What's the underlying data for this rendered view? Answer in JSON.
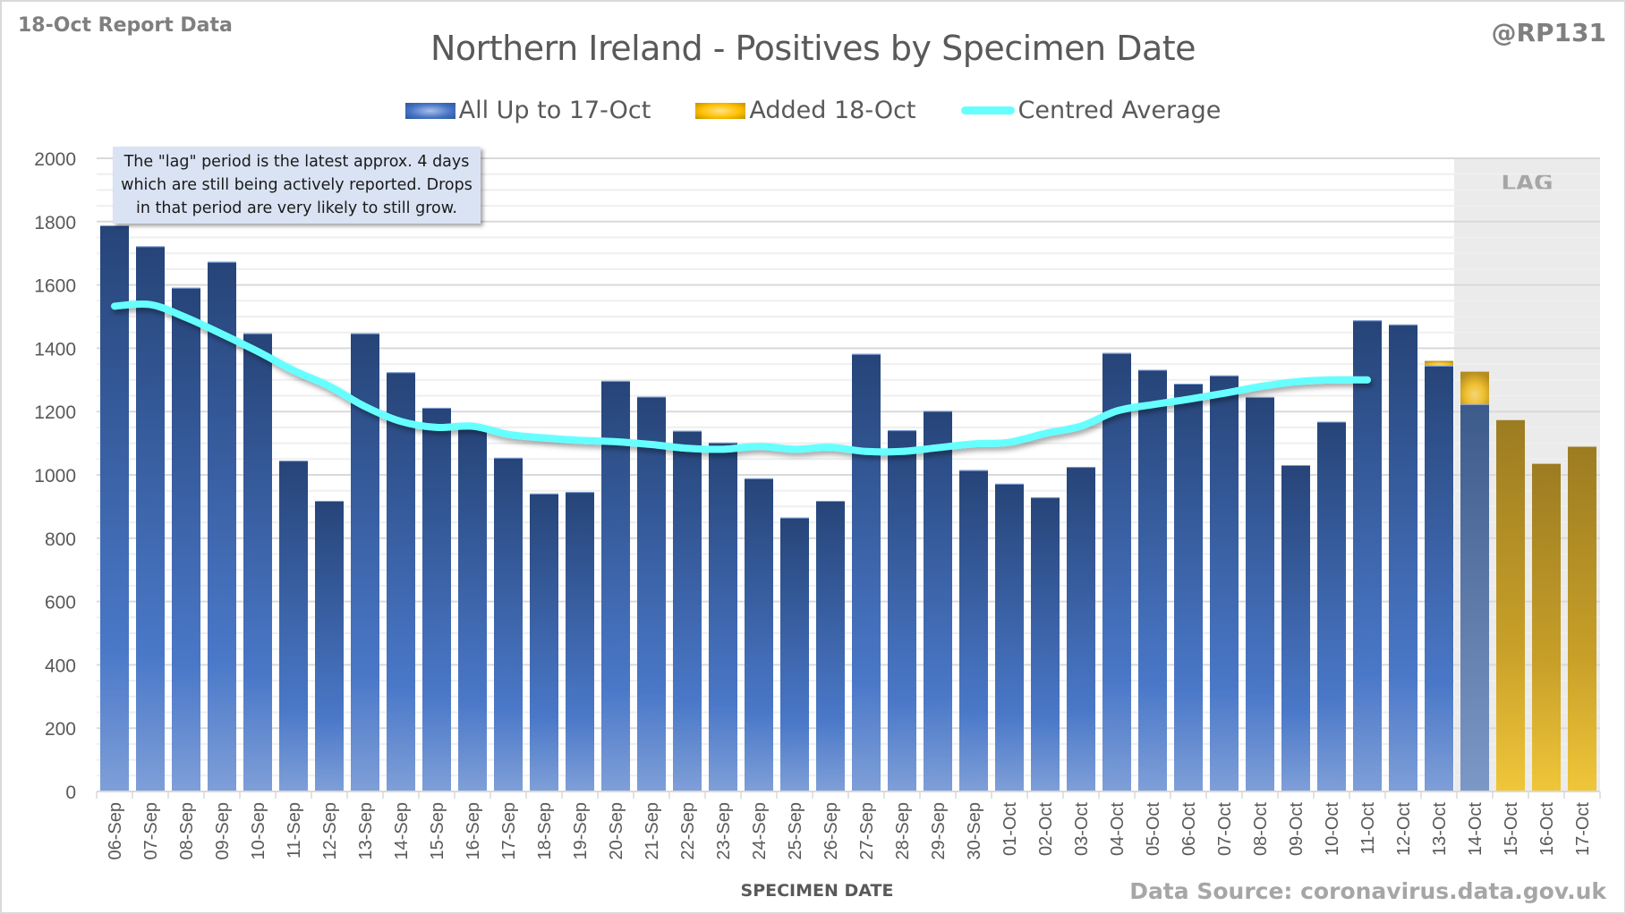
{
  "header": {
    "report_label": "18-Oct Report Data",
    "handle": "@RP131",
    "source": "Data Source: coronavirus.data.gov.uk"
  },
  "annotation": {
    "text": "The \"lag\" period is the latest approx. 4 days\nwhich are still being actively reported. Drops\nin that period are very likely to still grow."
  },
  "colors": {
    "blue_bar_top": "#264478",
    "blue_bar_bottom": "#7f9fd8",
    "gold_bar_top": "#9c7c22",
    "gold_bar_bottom": "#f0c63a",
    "average_line": "#66ffff",
    "lag_shading": "#ebebeb",
    "grid": "#d9d9d9",
    "text": "#595959"
  },
  "chart_data": {
    "type": "bar",
    "title": "Northern Ireland - Positives by Specimen Date",
    "xlabel": "SPECIMEN DATE",
    "ylabel": "",
    "ylim": [
      0,
      2000
    ],
    "yticks": [
      0,
      200,
      400,
      600,
      800,
      1000,
      1200,
      1400,
      1600,
      1800,
      2000
    ],
    "grid": true,
    "stacked": true,
    "legend_position": "top-center",
    "lag_label": "LAG",
    "lag_start": "14-Oct",
    "lag_end": "17-Oct",
    "categories": [
      "06-Sep",
      "07-Sep",
      "08-Sep",
      "09-Sep",
      "10-Sep",
      "11-Sep",
      "12-Sep",
      "13-Sep",
      "14-Sep",
      "15-Sep",
      "16-Sep",
      "17-Sep",
      "18-Sep",
      "19-Sep",
      "20-Sep",
      "21-Sep",
      "22-Sep",
      "23-Sep",
      "24-Sep",
      "25-Sep",
      "26-Sep",
      "27-Sep",
      "28-Sep",
      "29-Sep",
      "30-Sep",
      "01-Oct",
      "02-Oct",
      "03-Oct",
      "04-Oct",
      "05-Oct",
      "06-Oct",
      "07-Oct",
      "08-Oct",
      "09-Oct",
      "10-Oct",
      "11-Oct",
      "12-Oct",
      "13-Oct",
      "14-Oct",
      "15-Oct",
      "16-Oct",
      "17-Oct"
    ],
    "series": [
      {
        "name": "All Up to 17-Oct",
        "kind": "bar",
        "values": [
          1788,
          1722,
          1591,
          1673,
          1447,
          1045,
          918,
          1447,
          1324,
          1212,
          1145,
          1054,
          941,
          946,
          1297,
          1247,
          1139,
          1102,
          989,
          865,
          918,
          1382,
          1141,
          1202,
          1015,
          972,
          929,
          1025,
          1385,
          1332,
          1288,
          1314,
          1246,
          1031,
          1168,
          1488,
          1475,
          1345,
          1223,
          0,
          0,
          0
        ]
      },
      {
        "name": "Added 18-Oct",
        "kind": "bar",
        "values": [
          0,
          0,
          0,
          0,
          0,
          0,
          0,
          0,
          0,
          0,
          0,
          0,
          0,
          0,
          0,
          0,
          0,
          0,
          0,
          0,
          0,
          0,
          0,
          0,
          0,
          0,
          0,
          0,
          0,
          0,
          0,
          0,
          0,
          0,
          0,
          0,
          0,
          15,
          103,
          1173,
          1035,
          1089
        ]
      },
      {
        "name": "Centred Average",
        "kind": "line",
        "values": [
          1533,
          1538,
          1497,
          1445,
          1390,
          1330,
          1280,
          1216,
          1169,
          1150,
          1154,
          1128,
          1117,
          1109,
          1105,
          1096,
          1084,
          1081,
          1090,
          1081,
          1087,
          1074,
          1074,
          1086,
          1098,
          1103,
          1131,
          1154,
          1202,
          1222,
          1239,
          1258,
          1279,
          1294,
          1300,
          1300,
          null,
          null,
          null,
          null,
          null,
          null
        ]
      }
    ]
  }
}
